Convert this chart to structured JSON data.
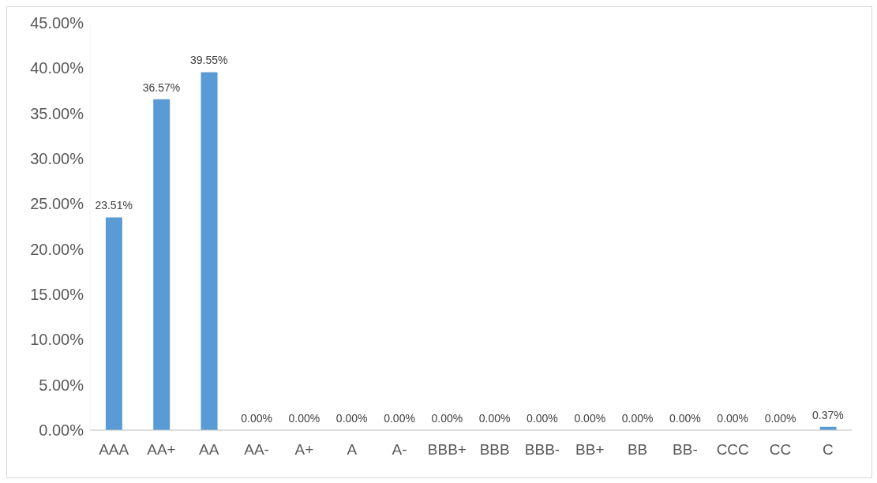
{
  "chart_data": {
    "type": "bar",
    "categories": [
      "AAA",
      "AA+",
      "AA",
      "AA-",
      "A+",
      "A",
      "A-",
      "BBB+",
      "BBB",
      "BBB-",
      "BB+",
      "BB",
      "BB-",
      "CCC",
      "CC",
      "C"
    ],
    "values": [
      23.51,
      36.57,
      39.55,
      0,
      0,
      0,
      0,
      0,
      0,
      0,
      0,
      0,
      0,
      0,
      0,
      0.37
    ],
    "value_labels": [
      "23.51%",
      "36.57%",
      "39.55%",
      "0.00%",
      "0.00%",
      "0.00%",
      "0.00%",
      "0.00%",
      "0.00%",
      "0.00%",
      "0.00%",
      "0.00%",
      "0.00%",
      "0.00%",
      "0.00%",
      "0.37%"
    ],
    "color": "#5b9bd5",
    "ylim": [
      0,
      45
    ],
    "yticks": [
      {
        "value": 0,
        "label": "0.00%"
      },
      {
        "value": 5,
        "label": "5.00%"
      },
      {
        "value": 10,
        "label": "10.00%"
      },
      {
        "value": 15,
        "label": "15.00%"
      },
      {
        "value": 20,
        "label": "20.00%"
      },
      {
        "value": 25,
        "label": "25.00%"
      },
      {
        "value": 30,
        "label": "30.00%"
      },
      {
        "value": 35,
        "label": "35.00%"
      },
      {
        "value": 40,
        "label": "40.00%"
      },
      {
        "value": 45,
        "label": "45.00%"
      }
    ],
    "grid": false,
    "legend": false
  }
}
